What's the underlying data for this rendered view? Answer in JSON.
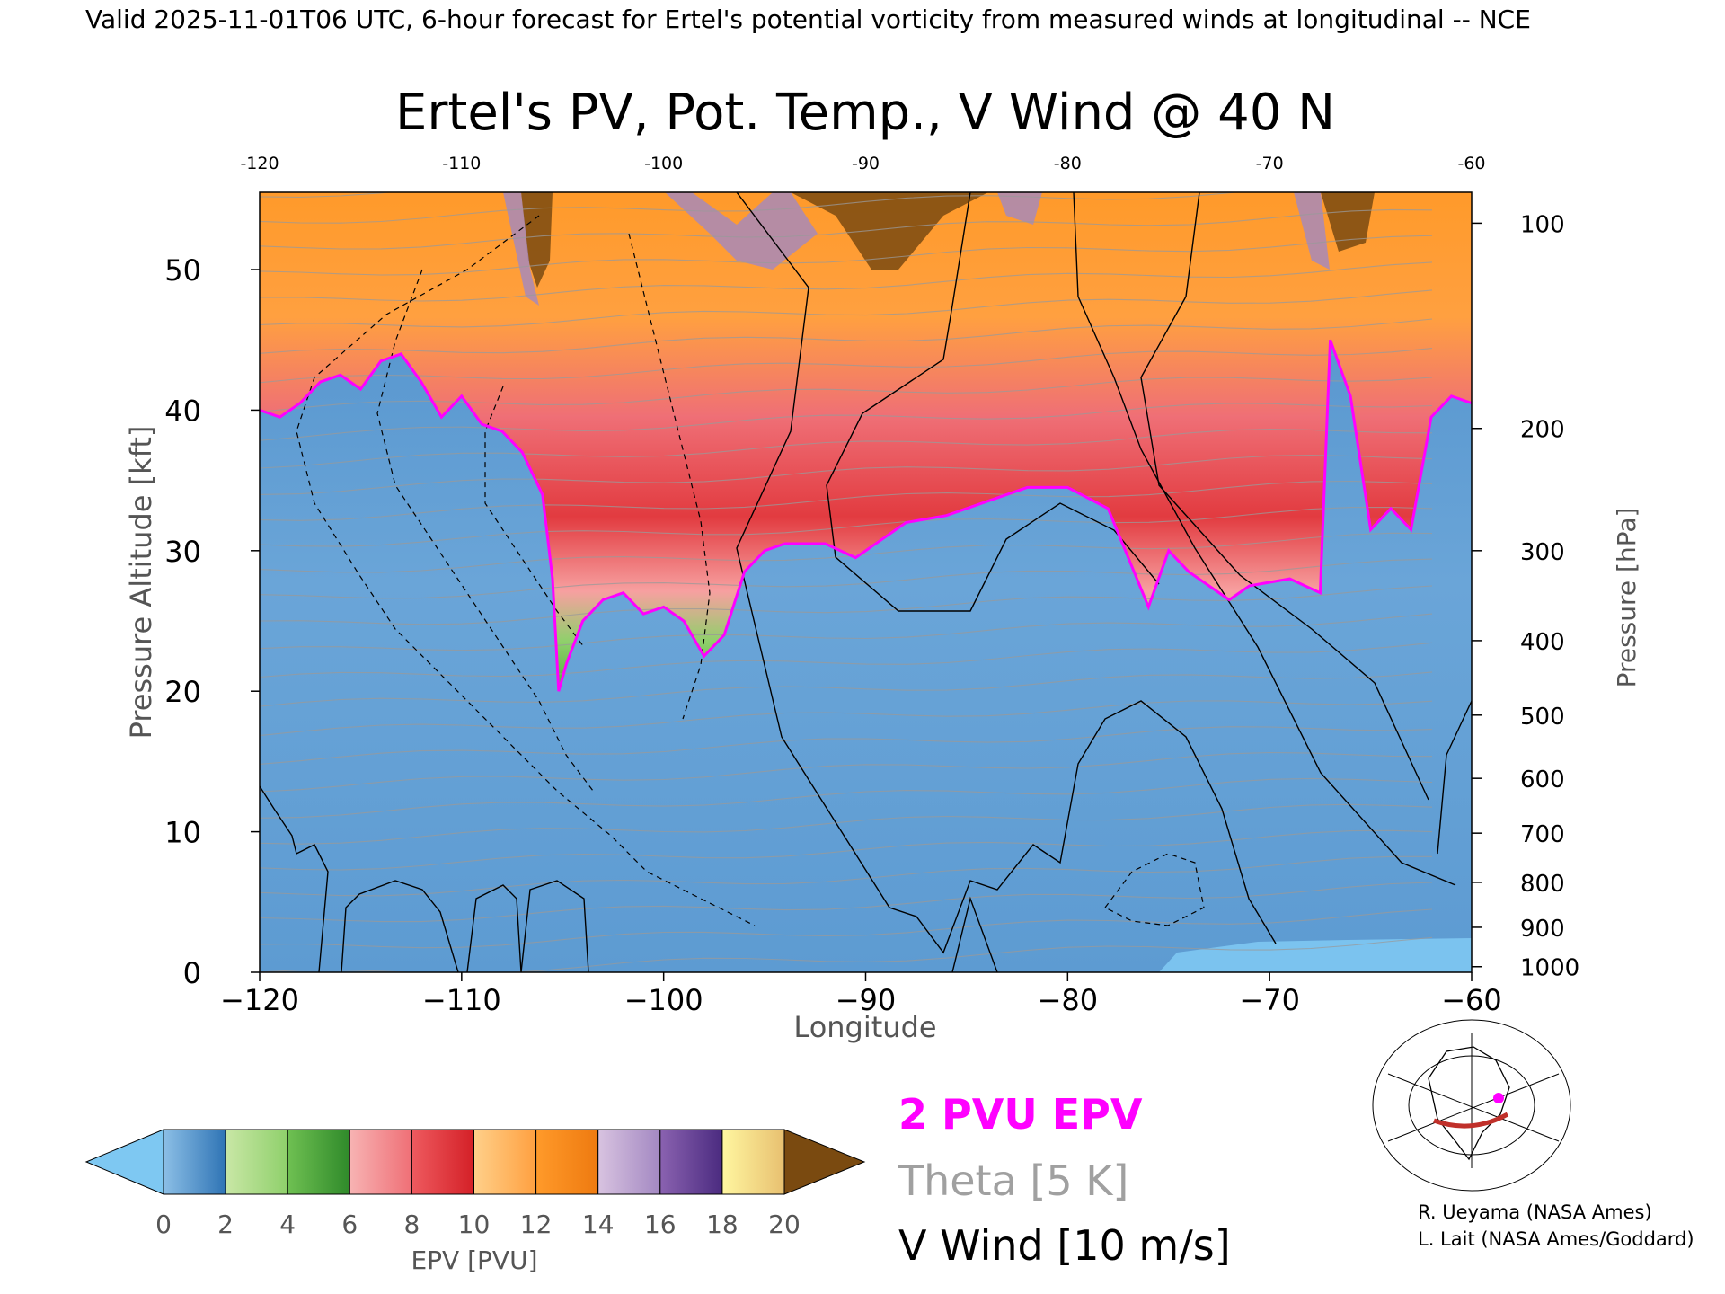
{
  "header": {
    "valid_line": "Valid 2025-11-01T06 UTC, 6-hour forecast for Ertel's potential vorticity from measured winds at longitudinal -- NCE"
  },
  "chart_data": {
    "type": "heatmap",
    "title": "Ertel's PV, Pot. Temp., V Wind @ 40 N",
    "xlabel": "Longitude",
    "ylabel": "Pressure Altitude [kft]",
    "ylabel_right": "Pressure [hPa]",
    "xlim": [
      -120,
      -60
    ],
    "ylim": [
      0,
      55.5
    ],
    "x_ticks": [
      -120,
      -110,
      -100,
      -90,
      -80,
      -70,
      -60
    ],
    "x_tick_labels": [
      "−120",
      "−110",
      "−100",
      "−90",
      "−80",
      "−70",
      "−60"
    ],
    "top_tick_labels": [
      "-120",
      "-110",
      "-100",
      "-90",
      "-80",
      "-70",
      "-60"
    ],
    "y_ticks": [
      0,
      10,
      20,
      30,
      40,
      50
    ],
    "y_tick_labels": [
      "0",
      "10",
      "20",
      "30",
      "40",
      "50"
    ],
    "pressure_ticks": [
      {
        "label": "100",
        "kft": 53.3
      },
      {
        "label": "200",
        "kft": 38.7
      },
      {
        "label": "300",
        "kft": 30.0
      },
      {
        "label": "400",
        "kft": 23.6
      },
      {
        "label": "500",
        "kft": 18.3
      },
      {
        "label": "600",
        "kft": 13.8
      },
      {
        "label": "700",
        "kft": 9.9
      },
      {
        "label": "800",
        "kft": 6.4
      },
      {
        "label": "900",
        "kft": 3.2
      },
      {
        "label": "1000",
        "kft": 0.4
      }
    ],
    "epv_2pvu_tropopause": [
      [
        -120,
        40.0
      ],
      [
        -119,
        39.5
      ],
      [
        -118,
        40.5
      ],
      [
        -117,
        42.0
      ],
      [
        -116,
        42.5
      ],
      [
        -115,
        41.5
      ],
      [
        -114,
        43.5
      ],
      [
        -113,
        44.0
      ],
      [
        -112,
        42.0
      ],
      [
        -111,
        39.5
      ],
      [
        -110,
        41.0
      ],
      [
        -109,
        39.0
      ],
      [
        -108,
        38.5
      ],
      [
        -107,
        37.0
      ],
      [
        -106,
        34.0
      ],
      [
        -105.5,
        28.0
      ],
      [
        -105.2,
        20.0
      ],
      [
        -104.8,
        22.0
      ],
      [
        -104,
        25.0
      ],
      [
        -103,
        26.5
      ],
      [
        -102,
        27.0
      ],
      [
        -101,
        25.5
      ],
      [
        -100,
        26.0
      ],
      [
        -99,
        25.0
      ],
      [
        -98,
        22.5
      ],
      [
        -97,
        24.0
      ],
      [
        -96,
        28.5
      ],
      [
        -95,
        30.0
      ],
      [
        -94,
        30.5
      ],
      [
        -92,
        30.5
      ],
      [
        -90.5,
        29.5
      ],
      [
        -89,
        31.0
      ],
      [
        -88,
        32.0
      ],
      [
        -86,
        32.5
      ],
      [
        -84,
        33.5
      ],
      [
        -82,
        34.5
      ],
      [
        -80,
        34.5
      ],
      [
        -78,
        33.0
      ],
      [
        -77,
        29.5
      ],
      [
        -76,
        26.0
      ],
      [
        -75,
        30.0
      ],
      [
        -74,
        28.5
      ],
      [
        -72,
        26.5
      ],
      [
        -71,
        27.5
      ],
      [
        -69,
        28.0
      ],
      [
        -67.5,
        27.0
      ],
      [
        -67,
        45.0
      ],
      [
        -66,
        41.0
      ],
      [
        -65,
        31.5
      ],
      [
        -64,
        33.0
      ],
      [
        -63,
        31.5
      ],
      [
        -62,
        39.5
      ],
      [
        -61,
        41.0
      ],
      [
        -60,
        40.5
      ]
    ],
    "colorbar": {
      "label": "EPV [PVU]",
      "ticks": [
        0,
        2,
        4,
        6,
        8,
        10,
        12,
        14,
        16,
        18,
        20
      ],
      "under_color": "#7ec8f2",
      "over_color": "#7a4a10",
      "segments": [
        {
          "from": 0,
          "to": 2,
          "c0": "#8cbfe6",
          "c1": "#2f74b5"
        },
        {
          "from": 2,
          "to": 4,
          "c0": "#c9e7a6",
          "c1": "#8fd06b"
        },
        {
          "from": 4,
          "to": 6,
          "c0": "#6fc052",
          "c1": "#2f8a2a"
        },
        {
          "from": 6,
          "to": 8,
          "c0": "#f7b3b3",
          "c1": "#ef6f76"
        },
        {
          "from": 8,
          "to": 10,
          "c0": "#ee5a5f",
          "c1": "#d42027"
        },
        {
          "from": 10,
          "to": 12,
          "c0": "#ffd08a",
          "c1": "#ffa040"
        },
        {
          "from": 12,
          "to": 14,
          "c0": "#ff9a2a",
          "c1": "#ee7a10"
        },
        {
          "from": 14,
          "to": 16,
          "c0": "#d8c3e0",
          "c1": "#a388c2"
        },
        {
          "from": 16,
          "to": 18,
          "c0": "#8a62b0",
          "c1": "#4b2b80"
        },
        {
          "from": 18,
          "to": 20,
          "c0": "#fff6a0",
          "c1": "#e8c070"
        }
      ]
    },
    "legend": [
      {
        "label": "2 PVU EPV",
        "color": "#ff00ff"
      },
      {
        "label": "Theta [5 K]",
        "color": "#a0a0a0"
      },
      {
        "label": "V Wind [10 m/s]",
        "color": "#000000"
      }
    ],
    "grid": false,
    "inset_map": "map-icon"
  },
  "credits": [
    "R. Ueyama (NASA Ames)",
    "L. Lait (NASA Ames/Goddard)"
  ]
}
